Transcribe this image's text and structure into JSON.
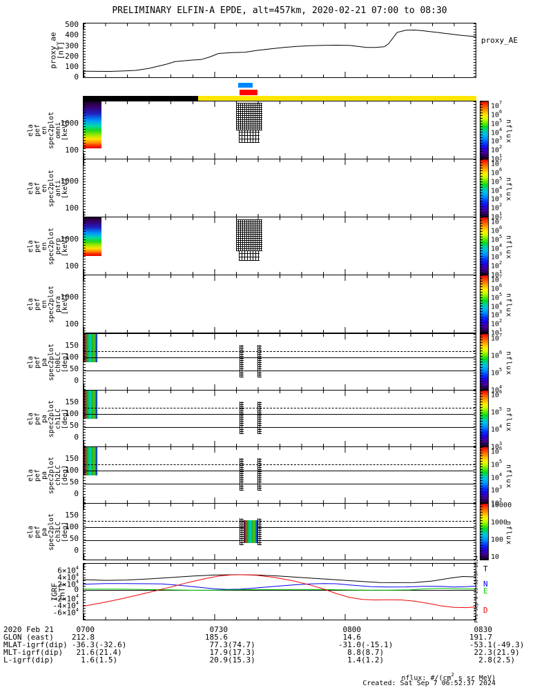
{
  "title": "PRELIMINARY ELFIN-A EPDE, alt=457km, 2020-02-21 07:00 to 08:30",
  "proxy": {
    "left_label": "proxy_ae\n[nT]",
    "right_label": "proxy_AE",
    "yticks": [
      "500",
      "400",
      "300",
      "200",
      "100",
      "0"
    ]
  },
  "bars": {
    "blue": "#0087ff",
    "red": "#ff0000",
    "black": "#000000",
    "yellow": "#ffe600"
  },
  "spec_panels": [
    {
      "left_label": "ela\npef\nen\nspec2plot\nomni\n[keV]",
      "yticks": [
        "1000",
        "100"
      ],
      "cbar_ticks": [
        "10^7",
        "10^6",
        "10^5",
        "10^4",
        "10^3",
        "10^2",
        "10^1"
      ],
      "cbar_label": "nflux",
      "has_data": true
    },
    {
      "left_label": "ela\npef\nen\nspec2plot\nanti\n[keV]",
      "yticks": [
        "1000",
        "100"
      ],
      "cbar_ticks": [
        "10^7",
        "10^6",
        "10^5",
        "10^4",
        "10^3",
        "10^2",
        "10^1"
      ],
      "cbar_label": "nflux",
      "has_data": false
    },
    {
      "left_label": "ela\npef\nen\nspec2plot\nperp\n[keV]",
      "yticks": [
        "1000",
        "100"
      ],
      "cbar_ticks": [
        "10^7",
        "10^6",
        "10^5",
        "10^4",
        "10^3",
        "10^2",
        "10^1"
      ],
      "cbar_label": "nflux",
      "has_data": true
    },
    {
      "left_label": "ela\npef\nen\nspec2plot\npara\n[keV]",
      "yticks": [
        "1000",
        "100"
      ],
      "cbar_ticks": [
        "10^7",
        "10^6",
        "10^5",
        "10^4",
        "10^3",
        "10^2",
        "10^1"
      ],
      "cbar_label": "nflux",
      "has_data": false
    }
  ],
  "pa_panels": [
    {
      "left_label": "ela\npef\npa\nspec2plot\nch0LC\n[deg]",
      "yticks": [
        "150",
        "100",
        "50",
        "0"
      ],
      "cbar_ticks": [
        "10^7",
        "10^6",
        "10^5",
        "10^4"
      ],
      "cbar_label": "nflux",
      "has_data": true
    },
    {
      "left_label": "ela\npef\npa\nspec2plot\nch1LC\n[deg]",
      "yticks": [
        "150",
        "100",
        "50",
        "0"
      ],
      "cbar_ticks": [
        "10^6",
        "10^5",
        "10^4",
        "10^3"
      ],
      "cbar_label": "nflux",
      "has_data": true
    },
    {
      "left_label": "ela\npef\npa\nspec2plot\nch2LC\n[deg]",
      "yticks": [
        "150",
        "100",
        "50",
        "0"
      ],
      "cbar_ticks": [
        "10^6",
        "10^5",
        "10^4",
        "10^3",
        "10^2"
      ],
      "cbar_label": "nflux",
      "has_data": true
    },
    {
      "left_label": "ela\npef\npa\nspec2plot\nch3LC\n[deg]",
      "yticks": [
        "150",
        "100",
        "50",
        "0"
      ],
      "cbar_ticks": [
        "10000",
        "1000",
        "100",
        "10"
      ],
      "cbar_label": "nflux",
      "has_data": true
    }
  ],
  "igrf": {
    "left_label": "IGRF\n[nT]",
    "yticks": [
      {
        "label": "6×10^4",
        "value": 60000
      },
      {
        "label": "4×10^4",
        "value": 40000
      },
      {
        "label": "2×10^4",
        "value": 20000
      },
      {
        "label": "0",
        "value": 0
      },
      {
        "label": "-2×10^4",
        "value": -20000
      },
      {
        "label": "-4×10^4",
        "value": -40000
      },
      {
        "label": "-6×10^4",
        "value": -60000
      }
    ],
    "legend": [
      {
        "label": "T",
        "color": "#000000"
      },
      {
        "label": "N",
        "color": "#0000ee"
      },
      {
        "label": "E",
        "color": "#00cc00"
      },
      {
        "label": "D",
        "color": "#ee0000"
      }
    ],
    "side_note": "Fri Sep 6 23:52:37 2024"
  },
  "xaxis": {
    "tick_labels": [
      "0700",
      "0730",
      "0800",
      "0830"
    ]
  },
  "table": {
    "rows": [
      {
        "label": "2020 Feb 21",
        "values": [
          "0700",
          "0730",
          "0800",
          "0830"
        ]
      },
      {
        "label": "GLON (east)",
        "values": [
          "212.8",
          "185.6",
          "14.6",
          "191.7"
        ]
      },
      {
        "label": "MLAT-igrf(dip)",
        "values": [
          "-36.3(-32.6)",
          "77.3(74.7)",
          "-31.0(-15.1)",
          "-53.1(-49.3)"
        ]
      },
      {
        "label": "MLT-igrf(dip)",
        "values": [
          "21.6(21.4)",
          "17.9(17.3)",
          "8.8(8.7)",
          "22.3(21.9)"
        ]
      },
      {
        "label": "L-igrf(dip)",
        "values": [
          "1.6(1.5)",
          "20.9(15.3)",
          "1.4(1.2)",
          "2.8(2.5)"
        ]
      }
    ]
  },
  "footer": {
    "units": "nflux: #/(cm^2 s sr MeV)",
    "created": "Created: Sat Sep  7 06:52:37 2024"
  },
  "chart_data": [
    {
      "type": "line",
      "name": "proxy_AE",
      "ylabel": "proxy_ae [nT]",
      "ylim": [
        0,
        515
      ],
      "x_ticks": [
        "0700",
        "0730",
        "0800",
        "0830"
      ],
      "x_minutes_after_0700": [
        0,
        3,
        6,
        9,
        12,
        15,
        17,
        19,
        21,
        23,
        25,
        27,
        29,
        31,
        34,
        37,
        40,
        43,
        46,
        49,
        52,
        55,
        58,
        61,
        63,
        65,
        67,
        69,
        70,
        71,
        72,
        74,
        76,
        78,
        80,
        82,
        84,
        86,
        88,
        90
      ],
      "values_nT": [
        58,
        57,
        56,
        60,
        66,
        85,
        105,
        125,
        150,
        158,
        165,
        170,
        195,
        228,
        236,
        240,
        258,
        272,
        285,
        296,
        302,
        305,
        307,
        306,
        295,
        286,
        286,
        292,
        320,
        375,
        430,
        450,
        452,
        445,
        435,
        425,
        415,
        405,
        396,
        390
      ]
    },
    {
      "type": "heatmap",
      "name": "ela_pef_en_spec2plot_omni",
      "ylabel": "energy [keV]",
      "yscale": "log",
      "yrange_keV": [
        50,
        6800
      ],
      "colorbar": {
        "label": "nflux",
        "scale": "log",
        "min": 10.0,
        "max": 10000000.0
      },
      "burst_interval": "07:36-07:40",
      "note": "single flux burst; ~1e7 nflux at 50-200 keV grading down to ~1e2 above 2 MeV, black speckle at high energy; no data outside burst"
    },
    {
      "type": "heatmap",
      "name": "ela_pef_en_spec2plot_anti",
      "ylabel": "energy [keV]",
      "yscale": "log",
      "yrange_keV": [
        50,
        6800
      ],
      "colorbar": {
        "label": "nflux",
        "scale": "log",
        "min": 10.0,
        "max": 10000000.0
      },
      "note": "no data shown"
    },
    {
      "type": "heatmap",
      "name": "ela_pef_en_spec2plot_perp",
      "ylabel": "energy [keV]",
      "yscale": "log",
      "yrange_keV": [
        50,
        6800
      ],
      "colorbar": {
        "label": "nflux",
        "scale": "log",
        "min": 10.0,
        "max": 10000000.0
      },
      "burst_interval": "07:36-07:40",
      "note": "single flux burst similar to omni panel"
    },
    {
      "type": "heatmap",
      "name": "ela_pef_en_spec2plot_para",
      "ylabel": "energy [keV]",
      "yscale": "log",
      "yrange_keV": [
        50,
        6800
      ],
      "colorbar": {
        "label": "nflux",
        "scale": "log",
        "min": 10.0,
        "max": 10000000.0
      },
      "note": "no data shown"
    },
    {
      "type": "heatmap",
      "name": "ela_pef_pa_spec2plot_ch0LC",
      "ylabel": "pitch angle [deg]",
      "ylim": [
        -40,
        200
      ],
      "overlay_lines": {
        "dashed_deg": 125,
        "solid_deg": [
          100,
          42
        ]
      },
      "burst_interval": "07:36-07:40",
      "colorbar": {
        "label": "nflux",
        "ticks": [
          "10^7",
          "10^6",
          "10^5",
          "10^4"
        ]
      }
    },
    {
      "type": "heatmap",
      "name": "ela_pef_pa_spec2plot_ch1LC",
      "ylabel": "pitch angle [deg]",
      "ylim": [
        -40,
        200
      ],
      "overlay_lines": {
        "dashed_deg": 125,
        "solid_deg": [
          100,
          42
        ]
      },
      "burst_interval": "07:36-07:40",
      "colorbar": {
        "label": "nflux",
        "ticks": [
          "10^6",
          "10^5",
          "10^4",
          "10^3"
        ]
      }
    },
    {
      "type": "heatmap",
      "name": "ela_pef_pa_spec2plot_ch2LC",
      "ylabel": "pitch angle [deg]",
      "ylim": [
        -40,
        200
      ],
      "overlay_lines": {
        "dashed_deg": 125,
        "solid_deg": [
          100,
          42
        ]
      },
      "burst_interval": "07:36-07:40",
      "colorbar": {
        "label": "nflux",
        "ticks": [
          "10^6",
          "10^5",
          "10^4",
          "10^3",
          "10^2"
        ]
      }
    },
    {
      "type": "heatmap",
      "name": "ela_pef_pa_spec2plot_ch3LC",
      "ylabel": "pitch angle [deg]",
      "ylim": [
        -40,
        200
      ],
      "overlay_lines": {
        "dashed_deg": 125,
        "solid_deg": [
          100,
          42
        ]
      },
      "burst_interval": "07:36-07:40",
      "colorbar": {
        "label": "nflux",
        "ticks": [
          "10000",
          "1000",
          "100",
          "10"
        ]
      }
    },
    {
      "type": "line",
      "name": "IGRF",
      "ylabel": "IGRF [nT]",
      "ylim": [
        -83000,
        75000
      ],
      "legend_position": "right",
      "series": [
        {
          "name": "T",
          "color": "#000000",
          "x": [
            0,
            5,
            10,
            15,
            20,
            25,
            30,
            35,
            40,
            45,
            50,
            55,
            60,
            65,
            68,
            72,
            76,
            80,
            84,
            87,
            90
          ],
          "values": [
            30000,
            28000,
            29000,
            32000,
            36000,
            40000,
            43000,
            44000,
            43000,
            40000,
            36000,
            32000,
            28000,
            24000,
            22000,
            21500,
            22000,
            26000,
            34000,
            39000,
            38000
          ]
        },
        {
          "name": "N",
          "color": "#0000ee",
          "x": [
            0,
            5,
            10,
            15,
            18,
            22,
            26,
            30,
            33,
            36,
            40,
            44,
            48,
            52,
            55,
            58,
            62,
            66,
            70,
            74,
            78,
            82,
            85,
            88,
            90
          ],
          "values": [
            17000,
            19000,
            19000,
            18500,
            18000,
            14000,
            9000,
            4000,
            2500,
            3000,
            7000,
            11000,
            15000,
            18000,
            19000,
            18500,
            14000,
            10000,
            9000,
            9500,
            11000,
            11000,
            9000,
            10000,
            12000
          ]
        },
        {
          "name": "E",
          "color": "#00cc00",
          "x": [
            0,
            10,
            20,
            25,
            30,
            35,
            40,
            50,
            55,
            60,
            65,
            70,
            75,
            78,
            82,
            85,
            88,
            90
          ],
          "values": [
            3500,
            3000,
            1000,
            0,
            500,
            1500,
            2000,
            2500,
            2000,
            1000,
            500,
            500,
            1000,
            4000,
            5500,
            4500,
            4000,
            4000
          ]
        },
        {
          "name": "D",
          "color": "#ee0000",
          "x": [
            0,
            4,
            8,
            12,
            16,
            20,
            24,
            28,
            31,
            34,
            37,
            40,
            44,
            48,
            52,
            55,
            58,
            61,
            64,
            67,
            70,
            73,
            76,
            79,
            82,
            85,
            88,
            90
          ],
          "values": [
            -45000,
            -36000,
            -26000,
            -15000,
            -3000,
            9000,
            22000,
            33000,
            40000,
            43500,
            44000,
            42000,
            36000,
            27000,
            15000,
            4000,
            -9000,
            -20000,
            -26000,
            -27500,
            -27000,
            -27500,
            -31000,
            -37000,
            -44000,
            -48500,
            -49000,
            -47000
          ]
        }
      ]
    }
  ]
}
